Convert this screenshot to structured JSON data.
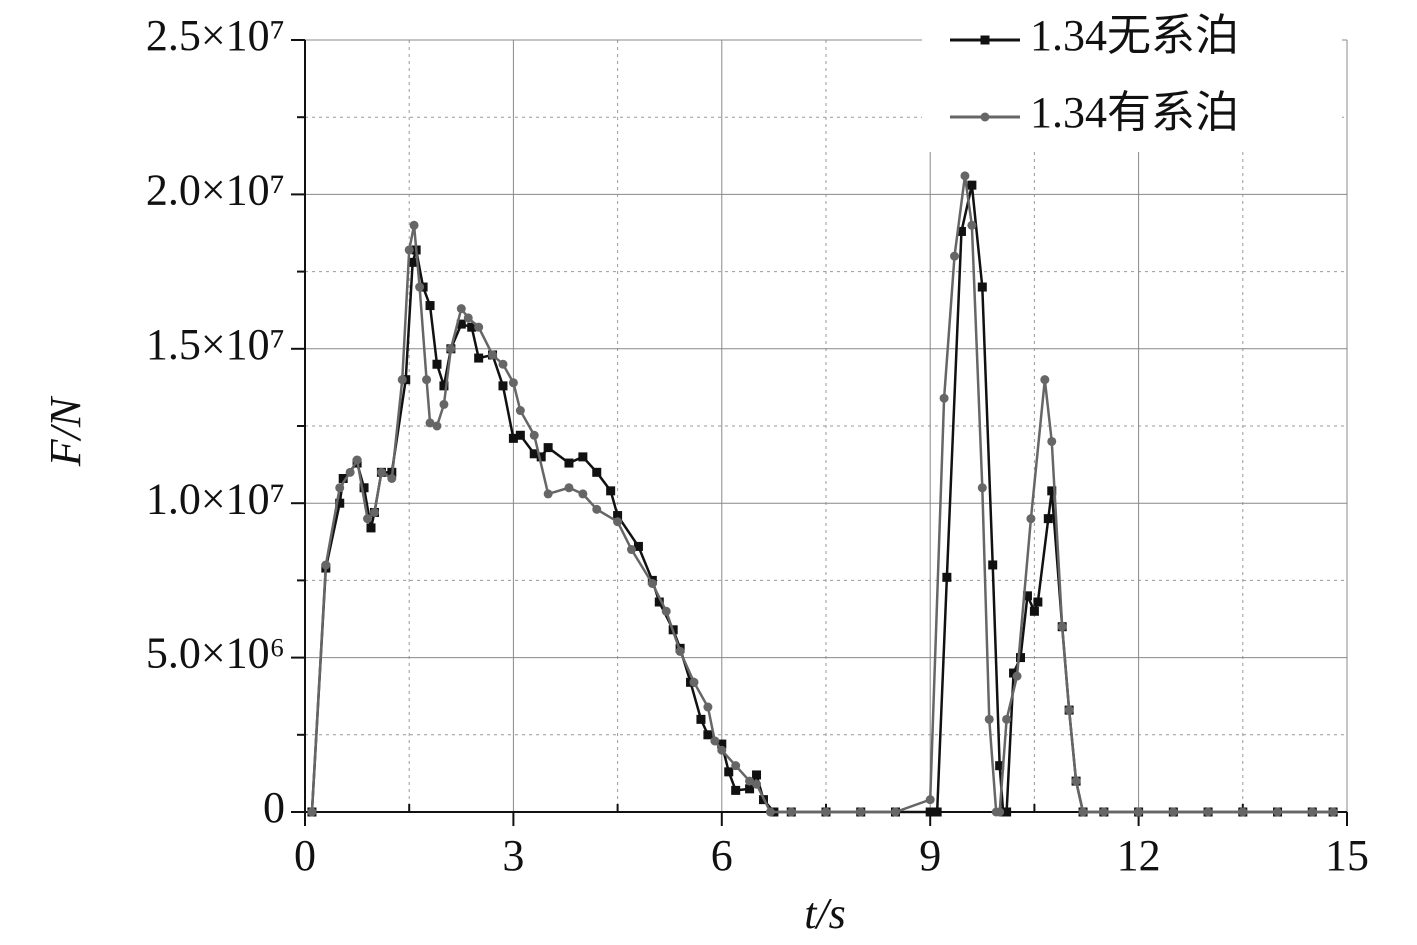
{
  "chart_data": {
    "type": "line",
    "x_label": "t/s",
    "y_label": "F/N",
    "xlim": [
      0,
      15
    ],
    "ylim": [
      0,
      25000000
    ],
    "xticks": [
      0,
      3,
      6,
      9,
      12,
      15
    ],
    "minor_xticks": [
      1.5,
      4.5,
      7.5,
      10.5,
      13.5
    ],
    "yticks": [
      0,
      {
        "value": 5000000,
        "label": "5.0×10⁶"
      },
      {
        "value": 10000000,
        "label": "1.0×10⁷"
      },
      {
        "value": 15000000,
        "label": "1.5×10⁷"
      },
      {
        "value": 20000000,
        "label": "2.0×10⁷"
      },
      {
        "value": 25000000,
        "label": "2.5×10⁷"
      }
    ],
    "minor_yticks": [
      2500000,
      7500000,
      12500000,
      17500000,
      22500000
    ],
    "grid": true,
    "legend": "upper right",
    "series": [
      {
        "name": "1.34无系泊",
        "color": "#111111",
        "marker": "square",
        "x": [
          0.1,
          0.3,
          0.5,
          0.55,
          0.75,
          0.85,
          0.95,
          1.0,
          1.1,
          1.25,
          1.45,
          1.55,
          1.6,
          1.7,
          1.8,
          1.9,
          2.0,
          2.1,
          2.25,
          2.4,
          2.5,
          2.7,
          2.85,
          3.0,
          3.1,
          3.3,
          3.4,
          3.5,
          3.8,
          4.0,
          4.2,
          4.4,
          4.5,
          4.8,
          5.0,
          5.1,
          5.3,
          5.4,
          5.55,
          5.7,
          5.8,
          6.0,
          6.1,
          6.2,
          6.4,
          6.5,
          6.6,
          6.75,
          7.0,
          7.5,
          8.0,
          8.5,
          9.0,
          9.1,
          9.24,
          9.45,
          9.6,
          9.75,
          9.9,
          10.0,
          10.05,
          10.1,
          10.2,
          10.3,
          10.4,
          10.5,
          10.55,
          10.7,
          10.75,
          10.9,
          11.0,
          11.1,
          11.2,
          11.5,
          12.0,
          12.5,
          13.0,
          13.5,
          14.0,
          14.5,
          14.8
        ],
        "values": [
          0,
          7900000,
          10000000,
          10800000,
          11300000,
          10500000,
          9200000,
          9700000,
          11000000,
          11000000,
          14000000,
          17800000,
          18200000,
          17000000,
          16400000,
          14500000,
          13800000,
          15000000,
          15800000,
          15700000,
          14700000,
          14800000,
          13800000,
          12100000,
          12200000,
          11600000,
          11500000,
          11800000,
          11300000,
          11500000,
          11000000,
          10400000,
          9600000,
          8600000,
          7500000,
          6800000,
          5900000,
          5300000,
          4200000,
          3000000,
          2500000,
          2200000,
          1300000,
          700000,
          750000,
          1200000,
          400000,
          0,
          0,
          0,
          0,
          0,
          0,
          0,
          7600000,
          18800000,
          20300000,
          17000000,
          8000000,
          1500000,
          0,
          0,
          4500000,
          5000000,
          7000000,
          6500000,
          6800000,
          9500000,
          10400000,
          6000000,
          3300000,
          1000000,
          0,
          0,
          0,
          0,
          0,
          0,
          0,
          0,
          0
        ]
      },
      {
        "name": "1.34有系泊",
        "color": "#666666",
        "marker": "circle",
        "x": [
          0.1,
          0.3,
          0.5,
          0.65,
          0.75,
          0.9,
          1.0,
          1.1,
          1.25,
          1.4,
          1.5,
          1.57,
          1.65,
          1.75,
          1.8,
          1.9,
          2.0,
          2.1,
          2.25,
          2.35,
          2.5,
          2.7,
          2.85,
          3.0,
          3.1,
          3.3,
          3.5,
          3.8,
          4.0,
          4.2,
          4.5,
          4.7,
          5.0,
          5.2,
          5.4,
          5.6,
          5.8,
          5.9,
          6.0,
          6.2,
          6.4,
          6.5,
          6.7,
          7.0,
          7.5,
          8.0,
          8.5,
          9.0,
          9.2,
          9.35,
          9.5,
          9.6,
          9.75,
          9.85,
          9.95,
          10.0,
          10.1,
          10.25,
          10.45,
          10.65,
          10.75,
          10.9,
          11.0,
          11.1,
          11.2,
          11.5,
          12.0,
          12.5,
          13.0,
          13.5,
          14.0,
          14.5,
          14.8
        ],
        "values": [
          0,
          8000000,
          10500000,
          11000000,
          11400000,
          9500000,
          9700000,
          11000000,
          10800000,
          14000000,
          18200000,
          19000000,
          17000000,
          14000000,
          12600000,
          12500000,
          13200000,
          15000000,
          16300000,
          16000000,
          15700000,
          14800000,
          14500000,
          13900000,
          13000000,
          12200000,
          10300000,
          10500000,
          10300000,
          9800000,
          9400000,
          8500000,
          7400000,
          6500000,
          5200000,
          4200000,
          3400000,
          2300000,
          2000000,
          1500000,
          1000000,
          900000,
          0,
          0,
          0,
          0,
          0,
          400000,
          13400000,
          18000000,
          20600000,
          19000000,
          10500000,
          3000000,
          0,
          0,
          3000000,
          4400000,
          9500000,
          14000000,
          12000000,
          6000000,
          3300000,
          1000000,
          0,
          0,
          0,
          0,
          0,
          0,
          0,
          0,
          0
        ]
      }
    ]
  }
}
